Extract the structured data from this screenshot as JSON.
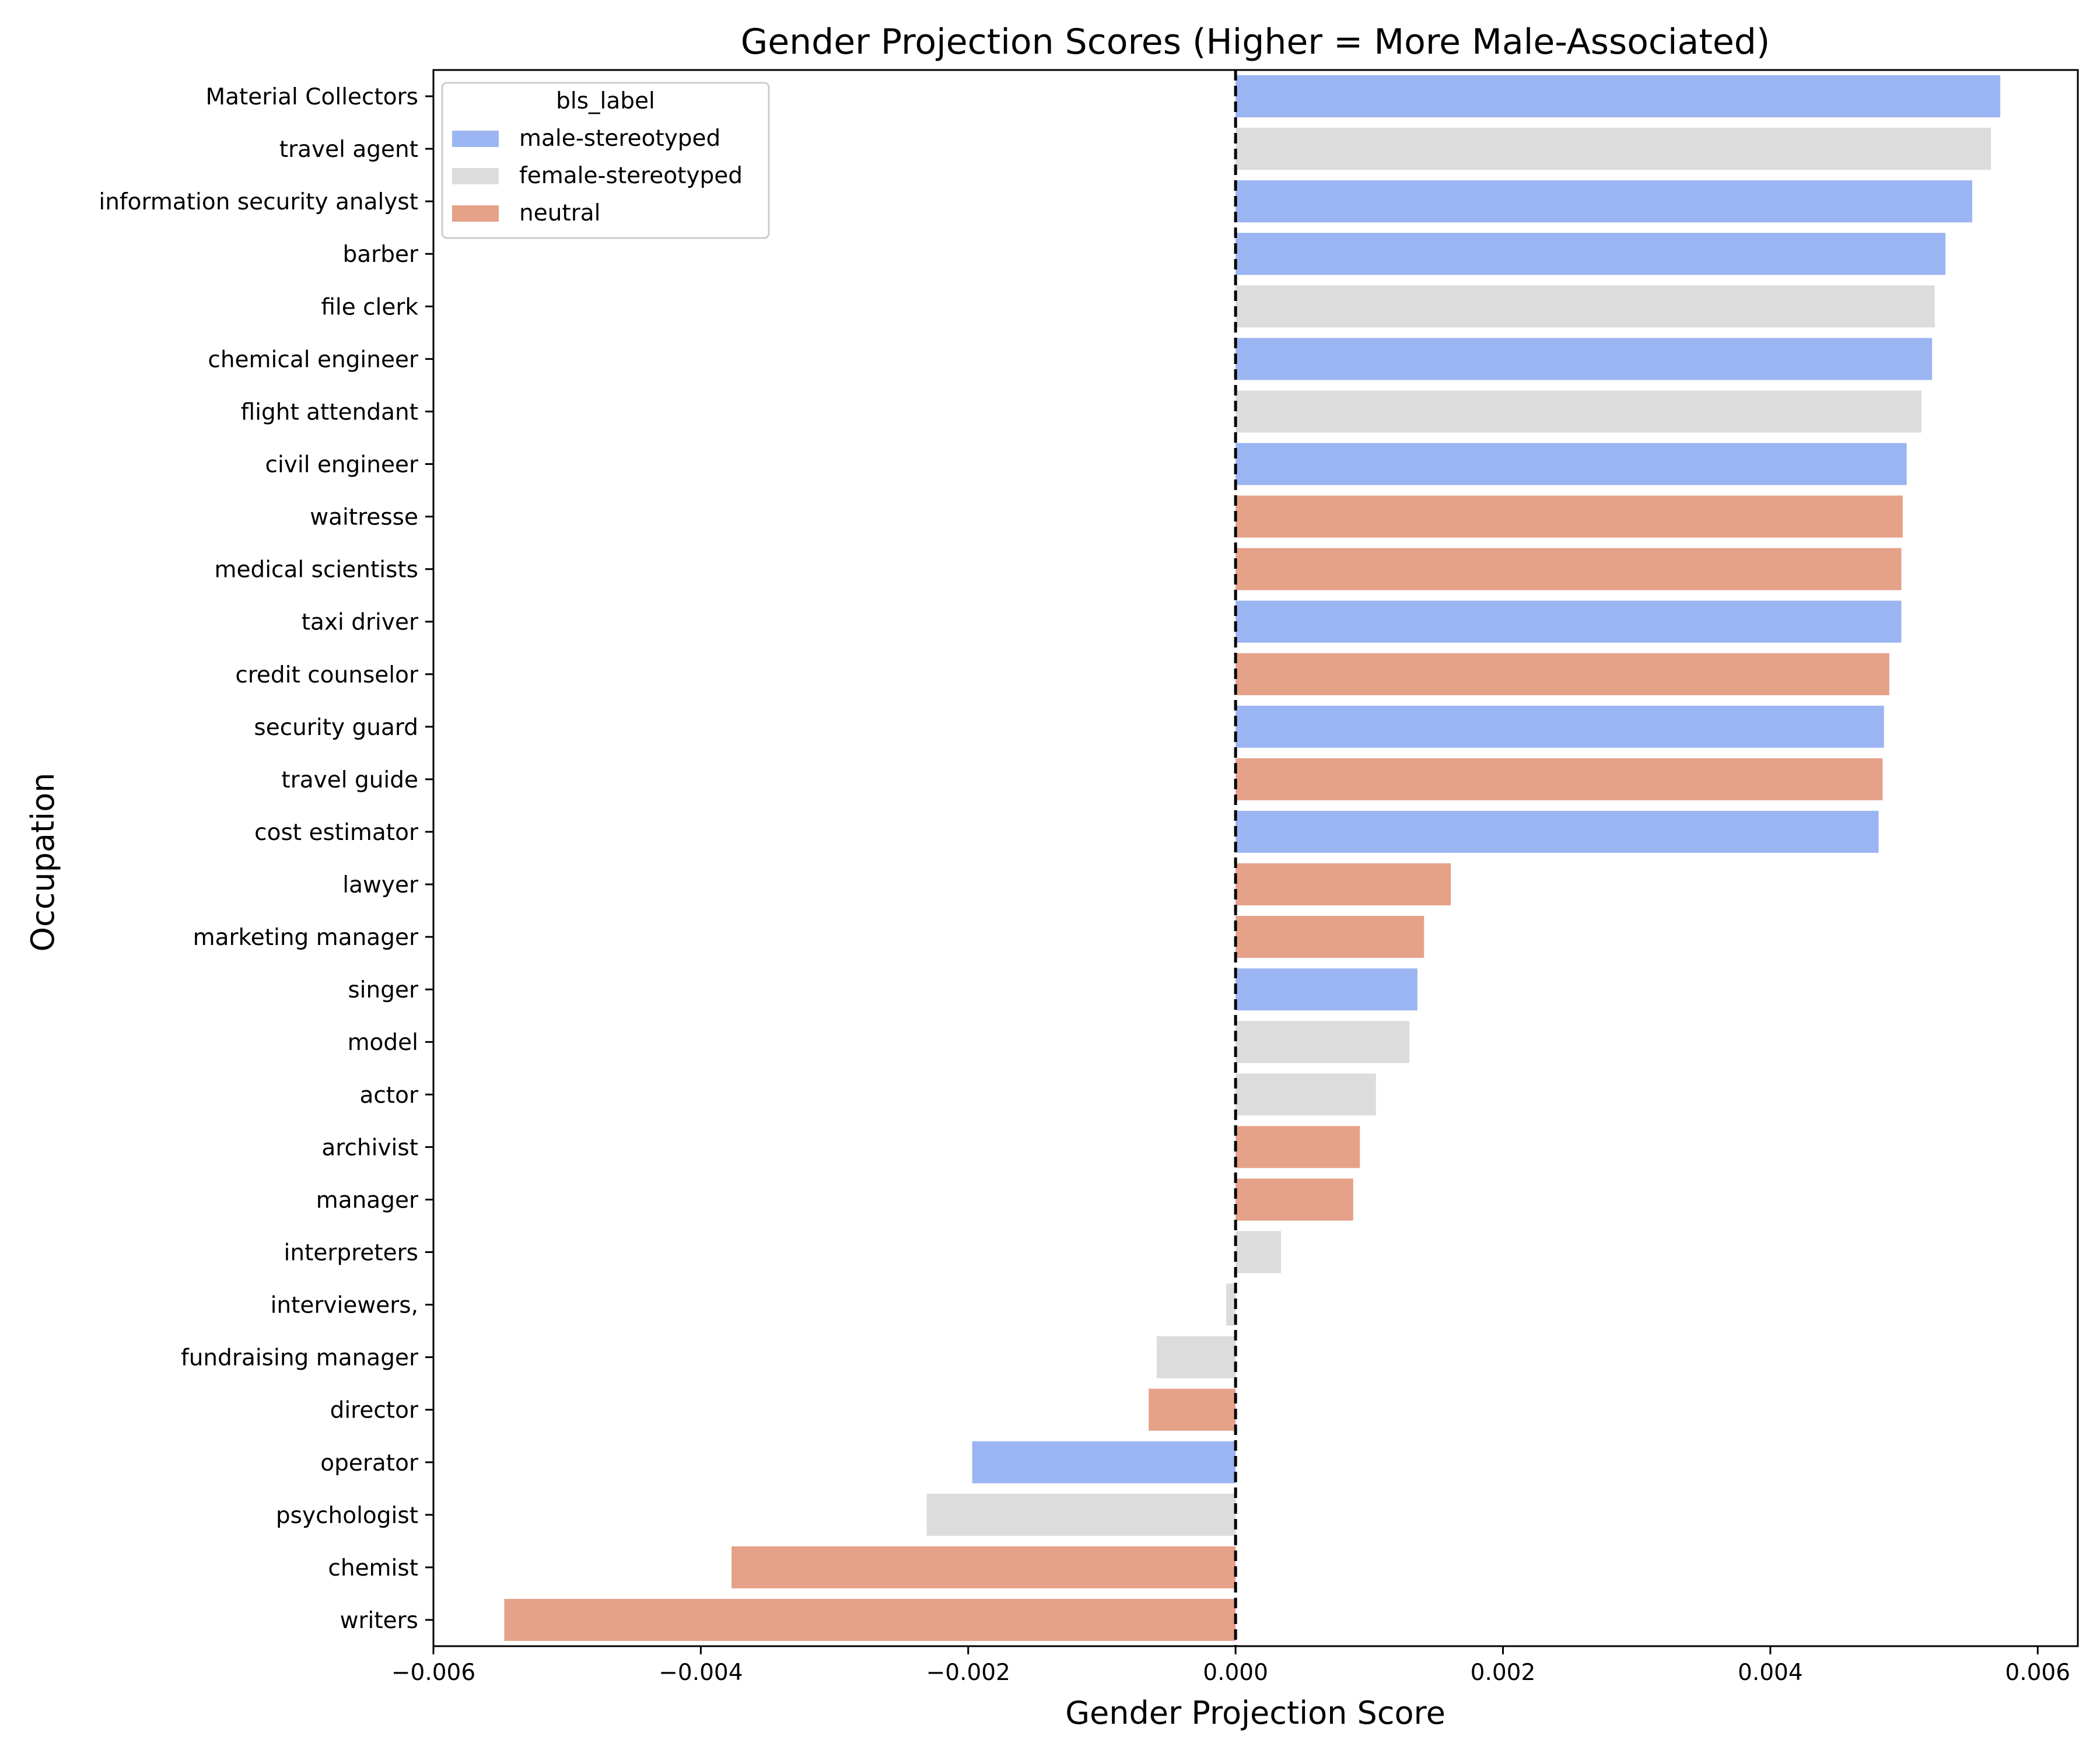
{
  "chart_data": {
    "type": "bar",
    "orientation": "horizontal",
    "title": "Gender Projection Scores (Higher = More Male-Associated)",
    "xlabel": "Gender Projection Score",
    "ylabel": "Occupation",
    "xlim": [
      -0.006,
      0.0063
    ],
    "xticks": [
      -0.006,
      -0.004,
      -0.002,
      0.0,
      0.002,
      0.004,
      0.006
    ],
    "xtick_labels": [
      "−0.006",
      "−0.004",
      "−0.002",
      "0.000",
      "0.002",
      "0.004",
      "0.006"
    ],
    "reference_line": {
      "x": 0,
      "style": "dashed",
      "color": "#000000"
    },
    "grid": false,
    "legend": {
      "title": "bls_label",
      "position": "top-left",
      "entries": [
        {
          "label": "male-stereotyped",
          "color": "#9bb5f2"
        },
        {
          "label": "female-stereotyped",
          "color": "#dcdcdc"
        },
        {
          "label": "neutral",
          "color": "#e6a189"
        }
      ]
    },
    "bars": [
      {
        "category": "Material Collectors",
        "value": 0.00572,
        "label": "male-stereotyped"
      },
      {
        "category": "travel agent",
        "value": 0.00565,
        "label": "female-stereotyped"
      },
      {
        "category": "information security analyst",
        "value": 0.00551,
        "label": "male-stereotyped"
      },
      {
        "category": "barber",
        "value": 0.00531,
        "label": "male-stereotyped"
      },
      {
        "category": "file clerk",
        "value": 0.00523,
        "label": "female-stereotyped"
      },
      {
        "category": "chemical engineer",
        "value": 0.00521,
        "label": "male-stereotyped"
      },
      {
        "category": "flight attendant",
        "value": 0.00513,
        "label": "female-stereotyped"
      },
      {
        "category": "civil engineer",
        "value": 0.00502,
        "label": "male-stereotyped"
      },
      {
        "category": "waitresse",
        "value": 0.00499,
        "label": "neutral"
      },
      {
        "category": "medical scientists",
        "value": 0.00498,
        "label": "neutral"
      },
      {
        "category": "taxi driver",
        "value": 0.00498,
        "label": "male-stereotyped"
      },
      {
        "category": "credit counselor",
        "value": 0.00489,
        "label": "neutral"
      },
      {
        "category": "security guard",
        "value": 0.00485,
        "label": "male-stereotyped"
      },
      {
        "category": "travel guide",
        "value": 0.00484,
        "label": "neutral"
      },
      {
        "category": "cost estimator",
        "value": 0.00481,
        "label": "male-stereotyped"
      },
      {
        "category": "lawyer",
        "value": 0.00161,
        "label": "neutral"
      },
      {
        "category": "marketing manager",
        "value": 0.00141,
        "label": "neutral"
      },
      {
        "category": "singer",
        "value": 0.00136,
        "label": "male-stereotyped"
      },
      {
        "category": "model",
        "value": 0.0013,
        "label": "female-stereotyped"
      },
      {
        "category": "actor",
        "value": 0.00105,
        "label": "female-stereotyped"
      },
      {
        "category": "archivist",
        "value": 0.00093,
        "label": "neutral"
      },
      {
        "category": "manager",
        "value": 0.00088,
        "label": "neutral"
      },
      {
        "category": "interpreters",
        "value": 0.00034,
        "label": "female-stereotyped"
      },
      {
        "category": "interviewers,",
        "value": -7e-05,
        "label": "female-stereotyped"
      },
      {
        "category": "fundraising manager",
        "value": -0.00059,
        "label": "female-stereotyped"
      },
      {
        "category": "director",
        "value": -0.00065,
        "label": "neutral"
      },
      {
        "category": "operator",
        "value": -0.00197,
        "label": "male-stereotyped"
      },
      {
        "category": "psychologist",
        "value": -0.00231,
        "label": "female-stereotyped"
      },
      {
        "category": "chemist",
        "value": -0.00377,
        "label": "neutral"
      },
      {
        "category": "writers",
        "value": -0.00547,
        "label": "neutral"
      }
    ]
  }
}
